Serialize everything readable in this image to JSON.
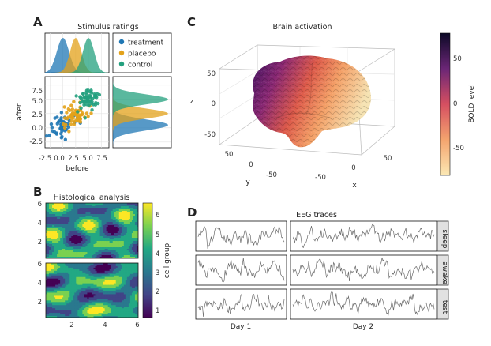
{
  "panels": {
    "a": "A",
    "b": "B",
    "c": "C",
    "d": "D"
  },
  "colors": {
    "treatment": "#1f77b4",
    "placebo": "#e3a21a",
    "control": "#23a07e",
    "trace": "#6b6b6b"
  },
  "chart_data": [
    {
      "id": "A",
      "type": "scatter",
      "title": "Stimulus ratings",
      "xlabel": "before",
      "ylabel": "after",
      "xticks": [
        "-2.5",
        "0.0",
        "2.5",
        "5.0",
        "7.5"
      ],
      "yticks": [
        "-2.5",
        "0.0",
        "2.5",
        "5.0",
        "7.5"
      ],
      "xlim": [
        -3.5,
        9
      ],
      "ylim": [
        -3.5,
        9
      ],
      "legend": {
        "position": "top-right",
        "entries": [
          "treatment",
          "placebo",
          "control"
        ]
      },
      "series": [
        {
          "name": "treatment",
          "color": "#1f77b4",
          "center_x": 0,
          "center_y": 0.5,
          "spread": 1.2
        },
        {
          "name": "placebo",
          "color": "#e3a21a",
          "center_x": 2.5,
          "center_y": 2.5,
          "spread": 1.1
        },
        {
          "name": "control",
          "color": "#23a07e",
          "center_x": 5.0,
          "center_y": 5.0,
          "spread": 1.1
        }
      ],
      "marginals": "density"
    },
    {
      "id": "B",
      "type": "heatmap",
      "title": "Histological analysis",
      "colorbar_label": "cell group",
      "colorbar_ticks": [
        "1",
        "2",
        "3",
        "4",
        "5",
        "6"
      ],
      "xticks": [
        "2",
        "4",
        "6"
      ],
      "yticks": [
        "2",
        "4",
        "6"
      ],
      "xlim": [
        0.3,
        6
      ],
      "ylim": [
        0,
        6
      ],
      "levels": 6,
      "subplots": 2
    },
    {
      "id": "C",
      "type": "surface",
      "title": "Brain activation",
      "colorbar_label": "BOLD level",
      "colorbar_ticks": [
        "50",
        "0",
        "-50"
      ],
      "xlabel": "x",
      "ylabel": "y",
      "zlabel": "z",
      "xticks": [
        "-50",
        "0",
        "50"
      ],
      "yticks": [
        "50",
        "0",
        "-50"
      ],
      "zticks": [
        "50",
        "0",
        "-50"
      ]
    },
    {
      "id": "D",
      "type": "line",
      "title": "EEG traces",
      "columns": [
        "Day 1",
        "Day 2"
      ],
      "rows": [
        "sleep",
        "awake",
        "test"
      ],
      "samples": 160
    }
  ]
}
